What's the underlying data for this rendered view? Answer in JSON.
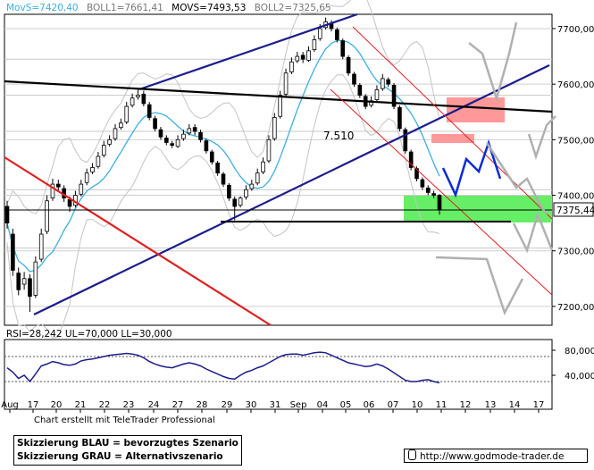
{
  "indicators": {
    "movs": "MovS=7420,40",
    "boll1": "BOLL1=7661,41",
    "movs2": "MOVS=7493,53",
    "boll2": "BOLL2=7325,65"
  },
  "rsi_label": "RSI=28,242 UL=70,000 LL=30,000",
  "credit": "Chart erstellt mit TeleTrader Professional",
  "legend": {
    "blue": "Skizzierung BLAU = bevorzugtes Szenario",
    "gray": "Skizzierung GRAU = Alternativszenario"
  },
  "footer_url": "http://www.godmode-trader.de",
  "annotation": "7.510",
  "last_price_tag": "7375,44",
  "colors": {
    "bb_band": "#d9d9d9",
    "mavg": "#3ab0e0",
    "resistance_box": "#ff9999",
    "support_box": "#66ee66",
    "trend_blue": "#1c1c8c",
    "trend_red": "#e02020",
    "scenario_blue": "#0a2ad8",
    "scenario_gray": "#b0b0b0"
  },
  "chart_data": [
    {
      "type": "candlestick",
      "yticks": [
        "7700,00",
        "7600,00",
        "7500,00",
        "7400,00",
        "7300,00",
        "7200,00"
      ],
      "ylim": [
        7170,
        7730
      ],
      "xticks": [
        "Aug",
        "17",
        "20",
        "21",
        "22",
        "23",
        "24",
        "27",
        "28",
        "29",
        "30",
        "31",
        "Sep",
        "04",
        "05",
        "06",
        "07",
        "10",
        "11",
        "12",
        "13",
        "14",
        "17"
      ],
      "close": [
        7350,
        7265,
        7230,
        7250,
        7218,
        7280,
        7330,
        7390,
        7420,
        7415,
        7395,
        7380,
        7400,
        7420,
        7440,
        7450,
        7470,
        7490,
        7500,
        7520,
        7530,
        7560,
        7575,
        7580,
        7565,
        7540,
        7520,
        7505,
        7495,
        7490,
        7500,
        7510,
        7520,
        7515,
        7500,
        7480,
        7460,
        7440,
        7420,
        7395,
        7380,
        7395,
        7410,
        7420,
        7440,
        7460,
        7500,
        7540,
        7580,
        7620,
        7640,
        7650,
        7645,
        7660,
        7680,
        7700,
        7712,
        7700,
        7680,
        7650,
        7620,
        7600,
        7580,
        7560,
        7570,
        7590,
        7610,
        7600,
        7560,
        7520,
        7480,
        7450,
        7430,
        7415,
        7405,
        7400,
        7375
      ],
      "open": [
        7380,
        7330,
        7260,
        7240,
        7250,
        7220,
        7285,
        7335,
        7395,
        7420,
        7412,
        7392,
        7382,
        7402,
        7423,
        7442,
        7452,
        7472,
        7492,
        7502,
        7522,
        7532,
        7562,
        7577,
        7582,
        7563,
        7538,
        7518,
        7503,
        7493,
        7488,
        7502,
        7512,
        7522,
        7513,
        7498,
        7478,
        7458,
        7438,
        7418,
        7393,
        7382,
        7397,
        7412,
        7422,
        7442,
        7462,
        7502,
        7542,
        7582,
        7622,
        7642,
        7652,
        7643,
        7662,
        7682,
        7702,
        7710,
        7698,
        7678,
        7648,
        7618,
        7598,
        7578,
        7562,
        7572,
        7592,
        7608,
        7598,
        7558,
        7518,
        7478,
        7448,
        7428,
        7413,
        7403,
        7400
      ],
      "high": [
        7390,
        7340,
        7270,
        7262,
        7258,
        7290,
        7340,
        7400,
        7430,
        7428,
        7418,
        7398,
        7408,
        7428,
        7448,
        7458,
        7478,
        7498,
        7508,
        7528,
        7538,
        7568,
        7583,
        7590,
        7588,
        7568,
        7543,
        7523,
        7508,
        7498,
        7508,
        7518,
        7528,
        7528,
        7518,
        7502,
        7482,
        7462,
        7442,
        7422,
        7398,
        7398,
        7418,
        7428,
        7448,
        7468,
        7508,
        7548,
        7588,
        7628,
        7648,
        7658,
        7658,
        7668,
        7688,
        7708,
        7720,
        7715,
        7702,
        7682,
        7652,
        7622,
        7602,
        7582,
        7578,
        7598,
        7618,
        7612,
        7602,
        7562,
        7522,
        7482,
        7452,
        7432,
        7418,
        7408,
        7402
      ],
      "low": [
        7340,
        7255,
        7220,
        7230,
        7190,
        7215,
        7280,
        7330,
        7390,
        7408,
        7388,
        7370,
        7378,
        7398,
        7418,
        7438,
        7448,
        7468,
        7488,
        7498,
        7518,
        7528,
        7558,
        7572,
        7560,
        7535,
        7515,
        7500,
        7490,
        7485,
        7485,
        7498,
        7508,
        7508,
        7495,
        7475,
        7455,
        7435,
        7415,
        7390,
        7355,
        7378,
        7392,
        7408,
        7418,
        7438,
        7458,
        7498,
        7538,
        7578,
        7618,
        7638,
        7638,
        7640,
        7658,
        7678,
        7698,
        7695,
        7675,
        7645,
        7615,
        7595,
        7575,
        7555,
        7558,
        7568,
        7588,
        7595,
        7555,
        7515,
        7475,
        7445,
        7425,
        7410,
        7400,
        7395,
        7365
      ]
    },
    {
      "type": "line",
      "title": "RSI",
      "yticks": [
        "80,000",
        "40,000"
      ],
      "ylim": [
        20,
        90
      ],
      "upper_limit": 70,
      "lower_limit": 30,
      "values": [
        52,
        45,
        35,
        40,
        30,
        42,
        55,
        58,
        62,
        60,
        57,
        56,
        58,
        63,
        65,
        66,
        68,
        70,
        72,
        73,
        74,
        75,
        74,
        72,
        68,
        62,
        58,
        55,
        53,
        52,
        55,
        58,
        60,
        58,
        55,
        50,
        46,
        42,
        38,
        35,
        34,
        40,
        45,
        48,
        52,
        55,
        60,
        65,
        70,
        73,
        74,
        74,
        72,
        74,
        76,
        77,
        76,
        72,
        68,
        64,
        60,
        58,
        56,
        54,
        55,
        58,
        55,
        50,
        44,
        38,
        32,
        30,
        30,
        32,
        33,
        30,
        28
      ]
    }
  ]
}
